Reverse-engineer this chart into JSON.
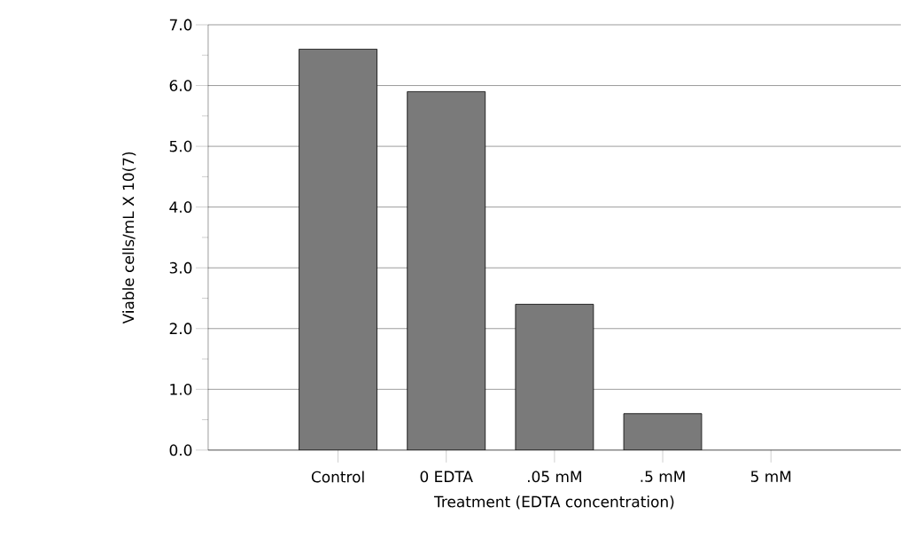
{
  "chart_data": {
    "type": "bar",
    "xlabel": "Treatment (EDTA concentration)",
    "ylabel": "Viable cells/mL X 10(7)",
    "categories": [
      "Control",
      "0 EDTA",
      ".05 mM",
      ".5 mM",
      "5 mM"
    ],
    "values": [
      6.6,
      5.9,
      2.4,
      0.6,
      null
    ],
    "color": "#7a7a7a",
    "ylim": [
      0,
      7
    ],
    "yticks": [
      {
        "value": 0,
        "label": "0.0"
      },
      {
        "value": 1,
        "label": "1.0"
      },
      {
        "value": 2,
        "label": "2.0"
      },
      {
        "value": 3,
        "label": "3.0"
      },
      {
        "value": 4,
        "label": "4.0"
      },
      {
        "value": 5,
        "label": "5.0"
      },
      {
        "value": 6,
        "label": "6.0"
      },
      {
        "value": 7,
        "label": "7.0"
      }
    ],
    "grid": "y"
  }
}
